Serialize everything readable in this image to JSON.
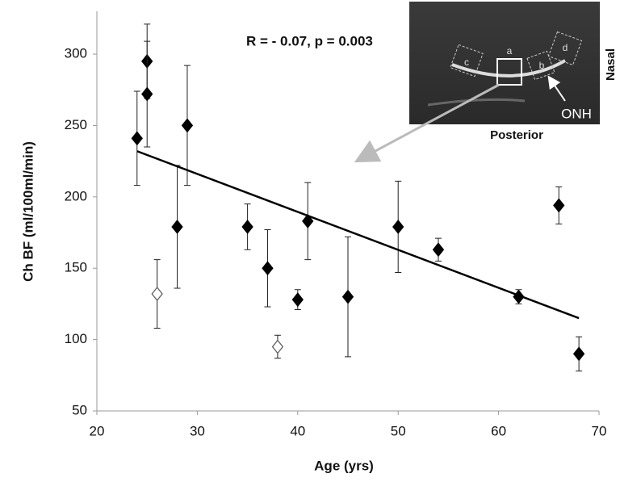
{
  "chart_data": {
    "type": "scatter",
    "x_label": "Age (yrs)",
    "y_label": "Ch BF (ml/100ml/min)",
    "annotation": "R = - 0.07, p = 0.003",
    "inset": {
      "labels": [
        "a",
        "b",
        "c",
        "d"
      ],
      "onh": "ONH",
      "side": "Nasal",
      "bottom": "Posterior"
    },
    "xlim": [
      20,
      70
    ],
    "xticks": [
      20,
      30,
      40,
      50,
      60,
      70
    ],
    "ylim": [
      50,
      330
    ],
    "yticks": [
      50,
      100,
      150,
      200,
      250,
      300
    ],
    "series": [
      {
        "marker": "filled",
        "color": "#000000",
        "x": [
          24,
          25,
          25,
          28,
          29,
          35,
          37,
          40,
          41,
          45,
          50,
          54,
          62,
          66,
          68
        ],
        "values": [
          241,
          295,
          272,
          179,
          250,
          179,
          150,
          128,
          183,
          130,
          179,
          163,
          130,
          194,
          90
        ],
        "error": [
          33,
          26,
          37,
          43,
          42,
          16,
          27,
          7,
          27,
          42,
          32,
          8,
          5,
          13,
          12
        ]
      },
      {
        "marker": "open",
        "color": "#555555",
        "x": [
          26,
          38
        ],
        "values": [
          132,
          95
        ],
        "error": [
          24,
          8
        ]
      },
      {
        "marker": "line",
        "color": "#000000",
        "x": [
          24,
          68
        ],
        "values": [
          232,
          115
        ]
      }
    ]
  }
}
